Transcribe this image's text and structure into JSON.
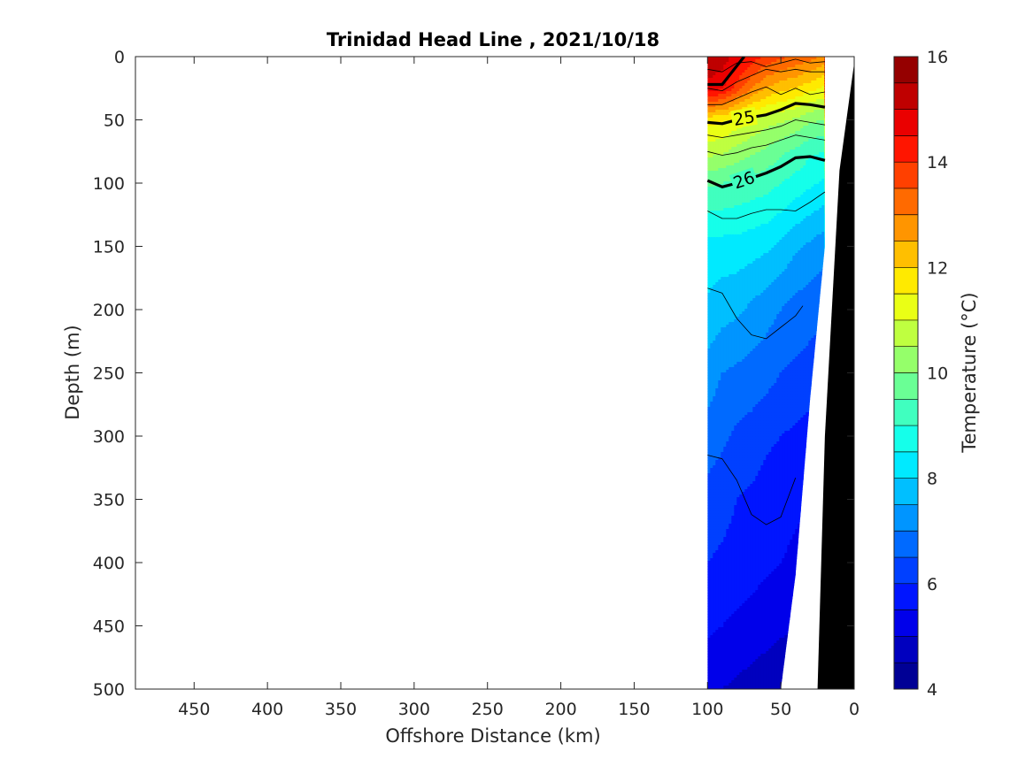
{
  "chart_data": {
    "type": "contour",
    "title": "Trinidad Head Line , 2021/10/18",
    "xlabel": "Offshore Distance (km)",
    "ylabel": "Depth (m)",
    "x_reversed": true,
    "y_reversed": true,
    "xlim": [
      0,
      490
    ],
    "ylim": [
      0,
      500
    ],
    "x_ticks": [
      450,
      400,
      350,
      300,
      250,
      200,
      150,
      100,
      50,
      0
    ],
    "y_ticks": [
      0,
      50,
      100,
      150,
      200,
      250,
      300,
      350,
      400,
      450,
      500
    ],
    "colorbar": {
      "label": "Temperature (°C)",
      "range": [
        4,
        16
      ],
      "step": 0.5,
      "ticks": [
        4,
        6,
        8,
        10,
        12,
        14,
        16
      ],
      "colormap": "jet"
    },
    "temperature_field": {
      "x": [
        100,
        90,
        80,
        70,
        60,
        50,
        40,
        30,
        20
      ],
      "depth": [
        0,
        25,
        50,
        75,
        100,
        150,
        200,
        250,
        300,
        350,
        400,
        450,
        500
      ],
      "bottom_depth": [
        500,
        500,
        500,
        500,
        500,
        500,
        410,
        270,
        150
      ],
      "values": [
        [
          15.5,
          15.3,
          14.8,
          14.3,
          13.9,
          13.6,
          13.4,
          13.2,
          12.8
        ],
        [
          14.8,
          14.6,
          13.8,
          13.0,
          12.5,
          12.2,
          12.0,
          11.7,
          11.4
        ],
        [
          11.7,
          11.6,
          11.3,
          11.0,
          10.7,
          10.6,
          10.4,
          10.1,
          10.0
        ],
        [
          10.7,
          10.6,
          10.3,
          10.1,
          9.9,
          9.6,
          9.4,
          9.1,
          9.0
        ],
        [
          9.6,
          9.5,
          9.4,
          9.3,
          9.2,
          9.0,
          8.8,
          8.6,
          8.4
        ],
        [
          8.3,
          8.3,
          8.3,
          8.2,
          8.1,
          7.9,
          7.6,
          7.4,
          7.2
        ],
        [
          7.9,
          7.7,
          7.6,
          7.4,
          7.2,
          7.0,
          6.8,
          6.7,
          6.6
        ],
        [
          7.3,
          7.0,
          6.9,
          6.8,
          6.7,
          6.5,
          6.4,
          6.3,
          6.2
        ],
        [
          6.8,
          6.6,
          6.4,
          6.3,
          6.1,
          6.0,
          5.9,
          5.8,
          5.7
        ],
        [
          6.3,
          6.2,
          6.0,
          5.9,
          5.8,
          5.7,
          5.6,
          5.5,
          5.4
        ],
        [
          6.0,
          5.9,
          5.8,
          5.7,
          5.6,
          5.5,
          5.4,
          5.3,
          5.2
        ],
        [
          5.6,
          5.5,
          5.4,
          5.3,
          5.2,
          5.1,
          5.0,
          4.9,
          4.8
        ],
        [
          5.1,
          5.0,
          4.9,
          4.8,
          4.7,
          4.6,
          4.5,
          4.4,
          4.3
        ]
      ]
    },
    "density_contours": [
      {
        "label": "",
        "bold": true,
        "points": [
          [
            100,
            22
          ],
          [
            90,
            22
          ],
          [
            75,
            0
          ]
        ]
      },
      {
        "label": "",
        "bold": false,
        "points": [
          [
            100,
            10
          ],
          [
            90,
            12
          ],
          [
            80,
            5
          ],
          [
            70,
            4
          ],
          [
            60,
            8
          ],
          [
            50,
            5
          ],
          [
            40,
            2
          ],
          [
            30,
            5
          ],
          [
            20,
            4
          ]
        ]
      },
      {
        "label": "",
        "bold": false,
        "points": [
          [
            100,
            25
          ],
          [
            90,
            27
          ],
          [
            80,
            20
          ],
          [
            70,
            15
          ],
          [
            60,
            10
          ],
          [
            50,
            12
          ],
          [
            40,
            10
          ],
          [
            30,
            12
          ],
          [
            20,
            12
          ]
        ]
      },
      {
        "label": "",
        "bold": false,
        "points": [
          [
            100,
            38
          ],
          [
            90,
            38
          ],
          [
            80,
            33
          ],
          [
            70,
            28
          ],
          [
            60,
            24
          ],
          [
            50,
            30
          ],
          [
            40,
            25
          ],
          [
            30,
            30
          ],
          [
            20,
            28
          ]
        ]
      },
      {
        "label": "25",
        "bold": true,
        "points": [
          [
            100,
            52
          ],
          [
            90,
            53
          ],
          [
            80,
            50
          ],
          [
            70,
            48
          ],
          [
            60,
            46
          ],
          [
            50,
            42
          ],
          [
            40,
            37
          ],
          [
            30,
            38
          ],
          [
            20,
            40
          ]
        ]
      },
      {
        "label": "",
        "bold": false,
        "points": [
          [
            100,
            62
          ],
          [
            90,
            64
          ],
          [
            80,
            62
          ],
          [
            70,
            60
          ],
          [
            60,
            58
          ],
          [
            50,
            55
          ],
          [
            40,
            50
          ],
          [
            30,
            52
          ],
          [
            20,
            54
          ]
        ]
      },
      {
        "label": "",
        "bold": false,
        "points": [
          [
            100,
            75
          ],
          [
            90,
            78
          ],
          [
            80,
            76
          ],
          [
            70,
            72
          ],
          [
            60,
            70
          ],
          [
            50,
            66
          ],
          [
            40,
            62
          ],
          [
            30,
            64
          ],
          [
            20,
            66
          ]
        ]
      },
      {
        "label": "26",
        "bold": true,
        "points": [
          [
            100,
            98
          ],
          [
            90,
            103
          ],
          [
            80,
            100
          ],
          [
            70,
            96
          ],
          [
            60,
            92
          ],
          [
            50,
            87
          ],
          [
            40,
            80
          ],
          [
            30,
            79
          ],
          [
            20,
            82
          ]
        ]
      },
      {
        "label": "",
        "bold": false,
        "points": [
          [
            100,
            122
          ],
          [
            90,
            128
          ],
          [
            80,
            128
          ],
          [
            70,
            124
          ],
          [
            60,
            121
          ],
          [
            50,
            121
          ],
          [
            40,
            122
          ],
          [
            30,
            115
          ],
          [
            20,
            107
          ]
        ]
      },
      {
        "label": "",
        "bold": false,
        "points": [
          [
            100,
            183
          ],
          [
            90,
            187
          ],
          [
            80,
            207
          ],
          [
            70,
            220
          ],
          [
            60,
            223
          ],
          [
            50,
            214
          ],
          [
            40,
            205
          ],
          [
            35,
            197
          ]
        ]
      },
      {
        "label": "",
        "bold": false,
        "points": [
          [
            100,
            315
          ],
          [
            90,
            318
          ],
          [
            80,
            335
          ],
          [
            70,
            362
          ],
          [
            60,
            370
          ],
          [
            50,
            364
          ],
          [
            40,
            333
          ]
        ]
      }
    ],
    "bathymetry": {
      "color": "#000000",
      "points": [
        [
          25,
          500
        ],
        [
          20,
          300
        ],
        [
          10,
          90
        ],
        [
          0,
          5
        ],
        [
          0,
          500
        ]
      ]
    }
  }
}
